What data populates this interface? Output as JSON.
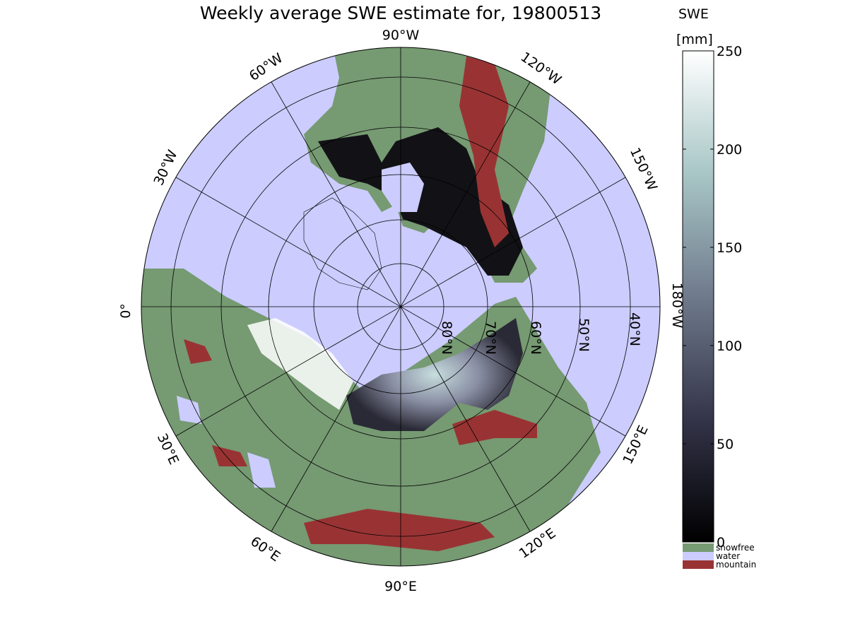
{
  "title": "Weekly average SWE estimate for, 19800513",
  "colorbar": {
    "label_line1": "SWE",
    "label_line2": "[mm]",
    "ticks": [
      "250",
      "200",
      "150",
      "100",
      "50",
      "0"
    ],
    "tick_values": [
      250,
      200,
      150,
      100,
      50,
      0
    ],
    "range": [
      0,
      250
    ],
    "categories": [
      {
        "label": "snowfree",
        "color": "#769a72"
      },
      {
        "label": "water",
        "color": "#ccccff"
      },
      {
        "label": "mountain",
        "color": "#993333"
      }
    ]
  },
  "map": {
    "projection": "north polar stereographic",
    "longitude_labels": {
      "w90": "90°W",
      "w60": "60°W",
      "w120": "120°W",
      "w30": "30°W",
      "w150": "150°W",
      "zero": "0°",
      "w180": "180°W",
      "e30": "30°E",
      "e150": "150°E",
      "e60": "60°E",
      "e120": "120°E",
      "e90": "90°E"
    },
    "latitude_labels": {
      "n80": "80°N",
      "n70": "70°N",
      "n60": "60°N",
      "n50": "50°N",
      "n40": "40°N"
    }
  },
  "colors": {
    "ocean": "#ccccff",
    "snowfree": "#769a72",
    "mountain": "#993333",
    "snow_low": "#000000",
    "snow_high": "#ffffff"
  }
}
